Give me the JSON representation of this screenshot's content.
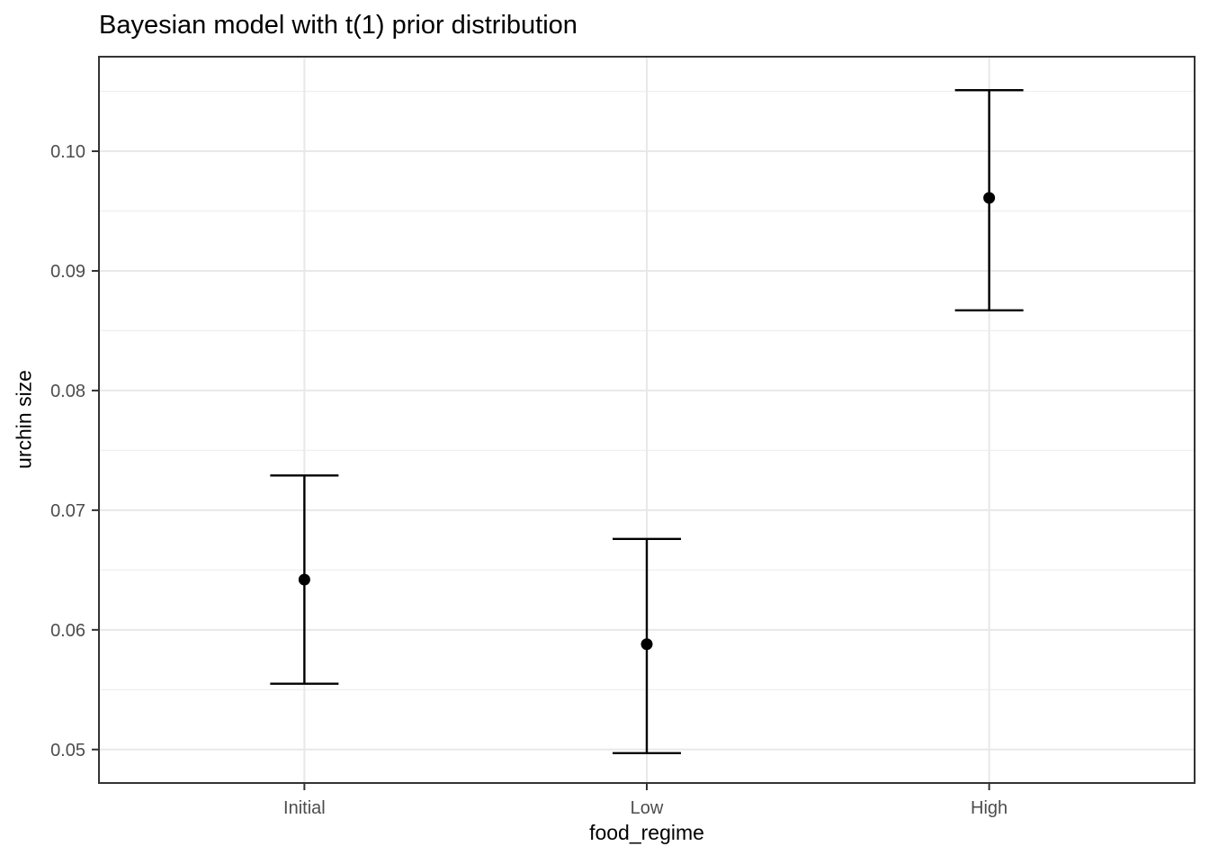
{
  "chart_data": {
    "type": "scatter",
    "title": "Bayesian model with t(1) prior distribution",
    "xlabel": "food_regime",
    "ylabel": "urchin size",
    "categories": [
      "Initial",
      "Low",
      "High"
    ],
    "points": [
      {
        "category": "Initial",
        "value": 0.0642,
        "lower": 0.0555,
        "upper": 0.0729
      },
      {
        "category": "Low",
        "value": 0.0588,
        "lower": 0.0497,
        "upper": 0.0676
      },
      {
        "category": "High",
        "value": 0.0961,
        "lower": 0.0867,
        "upper": 0.1051
      }
    ],
    "y_ticks": [
      {
        "value": 0.05,
        "label": "0.05"
      },
      {
        "value": 0.06,
        "label": "0.06"
      },
      {
        "value": 0.07,
        "label": "0.07"
      },
      {
        "value": 0.08,
        "label": "0.08"
      },
      {
        "value": 0.09,
        "label": "0.09"
      },
      {
        "value": 0.1,
        "label": "0.10"
      }
    ],
    "y_minor_ticks": [
      0.055,
      0.065,
      0.075,
      0.085,
      0.095,
      0.105
    ],
    "ylim": [
      0.0472,
      0.1079
    ],
    "grid": true,
    "legend": "none",
    "colors": {
      "point": "#000000",
      "error_bar": "#000000",
      "grid_major": "#e8e8e8",
      "grid_minor": "#f0f0f0",
      "panel_border": "#333333",
      "tick_mark": "#333333",
      "tick_label": "#4d4d4d",
      "title": "#000000"
    }
  }
}
